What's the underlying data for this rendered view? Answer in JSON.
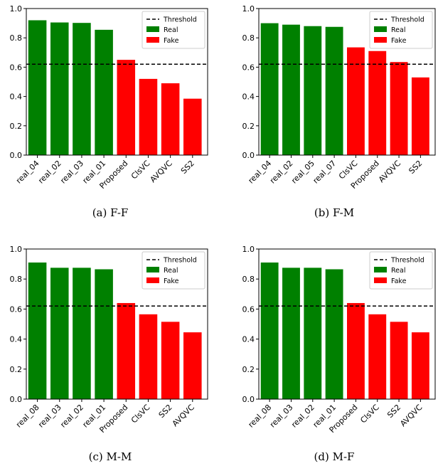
{
  "colors": {
    "real": "#008000",
    "fake": "#ff0000",
    "threshold": "#000000"
  },
  "legend": {
    "threshold": "Threshold",
    "real": "Real",
    "fake": "Fake",
    "placement": "top-right"
  },
  "chart_data": [
    {
      "type": "bar",
      "caption": "(a)  F-F",
      "categories": [
        "real_04",
        "real_02",
        "real_03",
        "real_01",
        "Proposed",
        "ClsVC",
        "AVQVC",
        "SS2"
      ],
      "values": [
        0.92,
        0.905,
        0.902,
        0.855,
        0.65,
        0.52,
        0.49,
        0.385
      ],
      "kinds": [
        "real",
        "real",
        "real",
        "real",
        "fake",
        "fake",
        "fake",
        "fake"
      ],
      "threshold": 0.62,
      "ylim": [
        0,
        1.0
      ],
      "yticks": [
        "0.0",
        "0.2",
        "0.4",
        "0.6",
        "0.8",
        "1.0"
      ],
      "xlabel": "",
      "ylabel": "",
      "grid": false
    },
    {
      "type": "bar",
      "caption": "(b)  F-M",
      "categories": [
        "real_04",
        "real_02",
        "real_05",
        "real_07",
        "ClsVC",
        "Proposed",
        "AVQVC",
        "SS2"
      ],
      "values": [
        0.9,
        0.89,
        0.88,
        0.875,
        0.735,
        0.71,
        0.635,
        0.53
      ],
      "kinds": [
        "real",
        "real",
        "real",
        "real",
        "fake",
        "fake",
        "fake",
        "fake"
      ],
      "threshold": 0.62,
      "ylim": [
        0,
        1.0
      ],
      "yticks": [
        "0.0",
        "0.2",
        "0.4",
        "0.6",
        "0.8",
        "1.0"
      ],
      "xlabel": "",
      "ylabel": "",
      "grid": false
    },
    {
      "type": "bar",
      "caption": "(c)  M-M",
      "categories": [
        "real_08",
        "real_03",
        "real_02",
        "real_01",
        "Proposed",
        "ClsVC",
        "SS2",
        "AVQVC"
      ],
      "values": [
        0.91,
        0.875,
        0.875,
        0.865,
        0.64,
        0.565,
        0.515,
        0.445
      ],
      "kinds": [
        "real",
        "real",
        "real",
        "real",
        "fake",
        "fake",
        "fake",
        "fake"
      ],
      "threshold": 0.62,
      "ylim": [
        0,
        1.0
      ],
      "yticks": [
        "0.0",
        "0.2",
        "0.4",
        "0.6",
        "0.8",
        "1.0"
      ],
      "xlabel": "",
      "ylabel": "",
      "grid": false
    },
    {
      "type": "bar",
      "caption": "(d)  M-F",
      "categories": [
        "real_08",
        "real_03",
        "real_02",
        "real_01",
        "Proposed",
        "ClsVC",
        "SS2",
        "AVQVC"
      ],
      "values": [
        0.91,
        0.875,
        0.875,
        0.865,
        0.64,
        0.565,
        0.515,
        0.445
      ],
      "kinds": [
        "real",
        "real",
        "real",
        "real",
        "fake",
        "fake",
        "fake",
        "fake"
      ],
      "threshold": 0.62,
      "ylim": [
        0,
        1.0
      ],
      "yticks": [
        "0.0",
        "0.2",
        "0.4",
        "0.6",
        "0.8",
        "1.0"
      ],
      "xlabel": "",
      "ylabel": "",
      "grid": false
    }
  ]
}
